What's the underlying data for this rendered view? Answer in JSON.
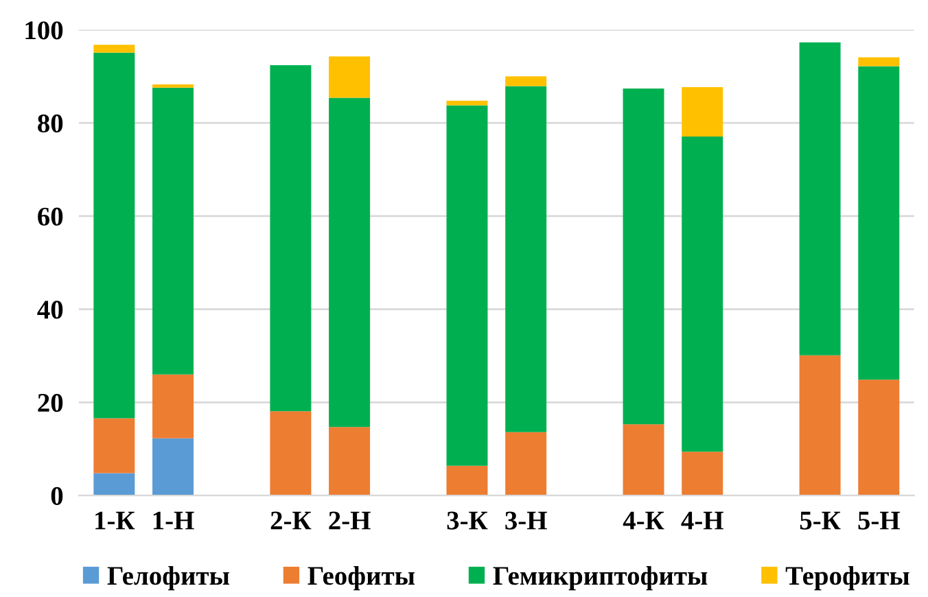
{
  "chart_data": {
    "type": "bar",
    "stacked": true,
    "categories": [
      "1-К",
      "1-Н",
      null,
      "2-К",
      "2-Н",
      null,
      "3-К",
      "3-Н",
      null,
      "4-К",
      "4-Н",
      null,
      "5-К",
      "5-Н"
    ],
    "series": [
      {
        "name": "Гелофиты",
        "color": "#5b9bd5",
        "values": [
          4.8,
          12.3,
          null,
          0,
          0,
          null,
          0,
          0,
          null,
          0,
          0,
          null,
          0,
          0
        ]
      },
      {
        "name": "Геофиты",
        "color": "#ed7d31",
        "values": [
          11.8,
          13.7,
          null,
          18.1,
          14.7,
          null,
          6.4,
          13.6,
          null,
          15.3,
          9.4,
          null,
          30.1,
          24.9
        ]
      },
      {
        "name": "Гемикриптофиты",
        "color": "#00b050",
        "values": [
          78.5,
          61.6,
          null,
          74.3,
          70.7,
          null,
          77.4,
          74.3,
          null,
          72.1,
          67.7,
          null,
          67.2,
          67.3
        ]
      },
      {
        "name": "Терофиты",
        "color": "#ffc000",
        "values": [
          1.7,
          0.7,
          null,
          0,
          8.9,
          null,
          1.0,
          2.1,
          null,
          0,
          10.6,
          null,
          0,
          1.9
        ]
      }
    ],
    "ylim": [
      0,
      100
    ],
    "yticks": [
      0,
      20,
      40,
      60,
      80,
      100
    ],
    "grid": "y",
    "legend": "bottom"
  }
}
